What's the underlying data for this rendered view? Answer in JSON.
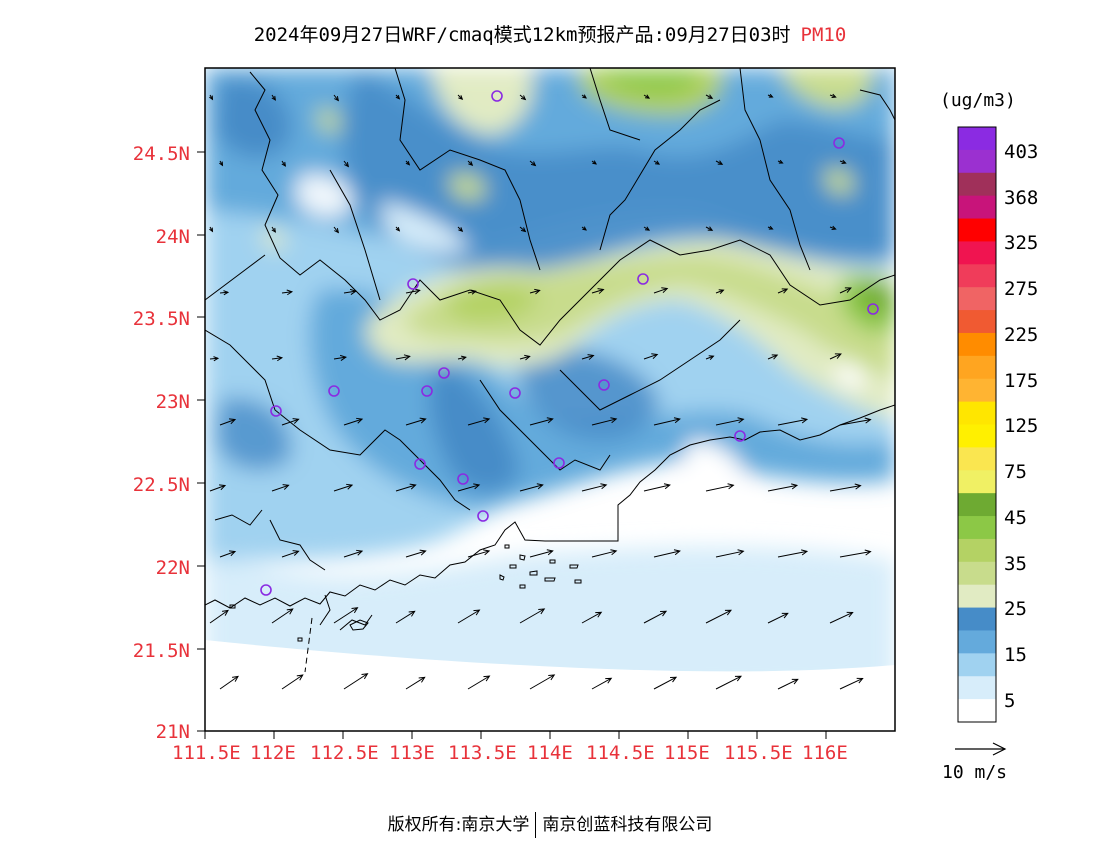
{
  "title": {
    "main": "2024年09月27日WRF/cmaq模式12km预报产品:09月27日03时",
    "variable": "PM10"
  },
  "map": {
    "lon_range": [
      111.5,
      116.5
    ],
    "lat_range": [
      21.0,
      25.0
    ],
    "x_ticks": [
      "111.5E",
      "112E",
      "112.5E",
      "113E",
      "113.5E",
      "114E",
      "114.5E",
      "115E",
      "115.5E",
      "116E"
    ],
    "y_ticks": [
      "21N",
      "21.5N",
      "22N",
      "22.5N",
      "23N",
      "23.5N",
      "24N",
      "24.5N"
    ],
    "background_color": "#ffffff",
    "coastline_color": "#000000",
    "wind_arrow_color": "#000000",
    "station_marker": "circle",
    "station_marker_color": "#8a2be2"
  },
  "colorbar": {
    "unit": "(ug/m3)",
    "levels": [
      "403",
      "368",
      "325",
      "275",
      "225",
      "175",
      "125",
      "75",
      "45",
      "35",
      "25",
      "15",
      "5"
    ],
    "colors_top_to_bottom": [
      "#8b2be2",
      "#9b30d0",
      "#a0305a",
      "#c8147a",
      "#ff0000",
      "#f01450",
      "#f03c5a",
      "#f06464",
      "#f05a32",
      "#ff8c00",
      "#ffa520",
      "#ffb432",
      "#ffe600",
      "#fff000",
      "#fae650",
      "#f0f064",
      "#6eaa32",
      "#8cc846",
      "#b4d264",
      "#c8dc8c",
      "#e1ebc3",
      "#468cc8",
      "#64aadc",
      "#a0d2f0",
      "#d7edfa",
      "#ffffff"
    ]
  },
  "wind_reference": {
    "label": "10 m/s"
  },
  "footer": {
    "left": "版权所有:南京大学",
    "right": "南京创蓝科技有限公司"
  }
}
